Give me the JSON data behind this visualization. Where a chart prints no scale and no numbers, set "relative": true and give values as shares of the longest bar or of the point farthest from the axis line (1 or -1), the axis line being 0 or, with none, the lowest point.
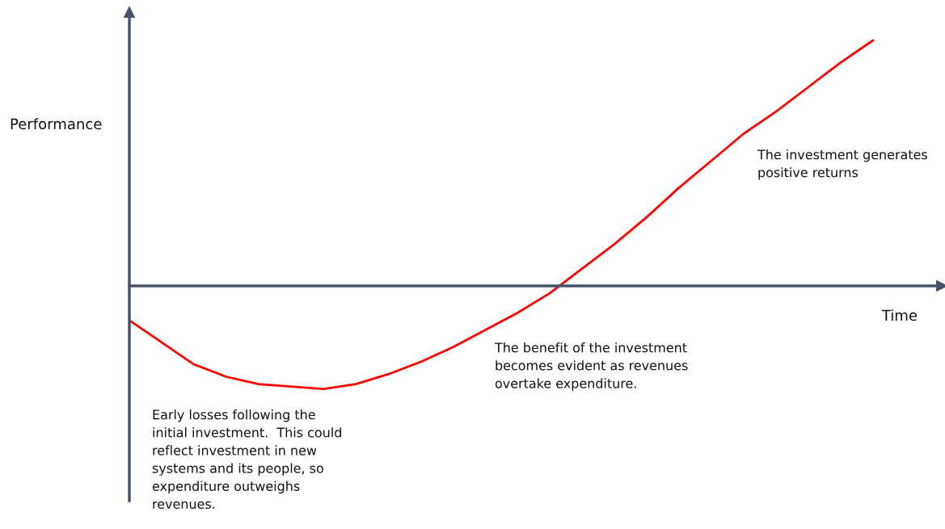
{
  "chart_data": {
    "type": "line",
    "relative": true,
    "xlabel": "Time",
    "ylabel": "Performance",
    "categories": [
      null,
      null,
      null,
      null,
      null,
      null,
      null,
      null,
      null,
      null,
      null,
      null,
      null,
      null,
      null,
      null,
      null,
      null,
      null,
      null,
      null,
      null,
      null,
      null
    ],
    "series": [
      {
        "color": "#ff0000",
        "values": [
          -0.14,
          -0.23,
          -0.32,
          -0.37,
          -0.4,
          -0.41,
          -0.42,
          -0.4,
          -0.36,
          -0.31,
          -0.25,
          -0.18,
          -0.11,
          -0.03,
          0.07,
          0.17,
          0.28,
          0.4,
          0.51,
          0.62,
          0.71,
          0.81,
          0.91,
          1.0
        ]
      }
    ],
    "annotations": [
      "Early losses following the\ninitial investment.  This could\nreflect investment in new\nsystems and its people, so\nexpenditure outweighs\nrevenues.",
      "The benefit of the investment\nbecomes evident as revenues\novertake expenditure.",
      "The investment generates\npositive returns"
    ],
    "legend": false,
    "marker": "none",
    "line_style": "solid"
  }
}
